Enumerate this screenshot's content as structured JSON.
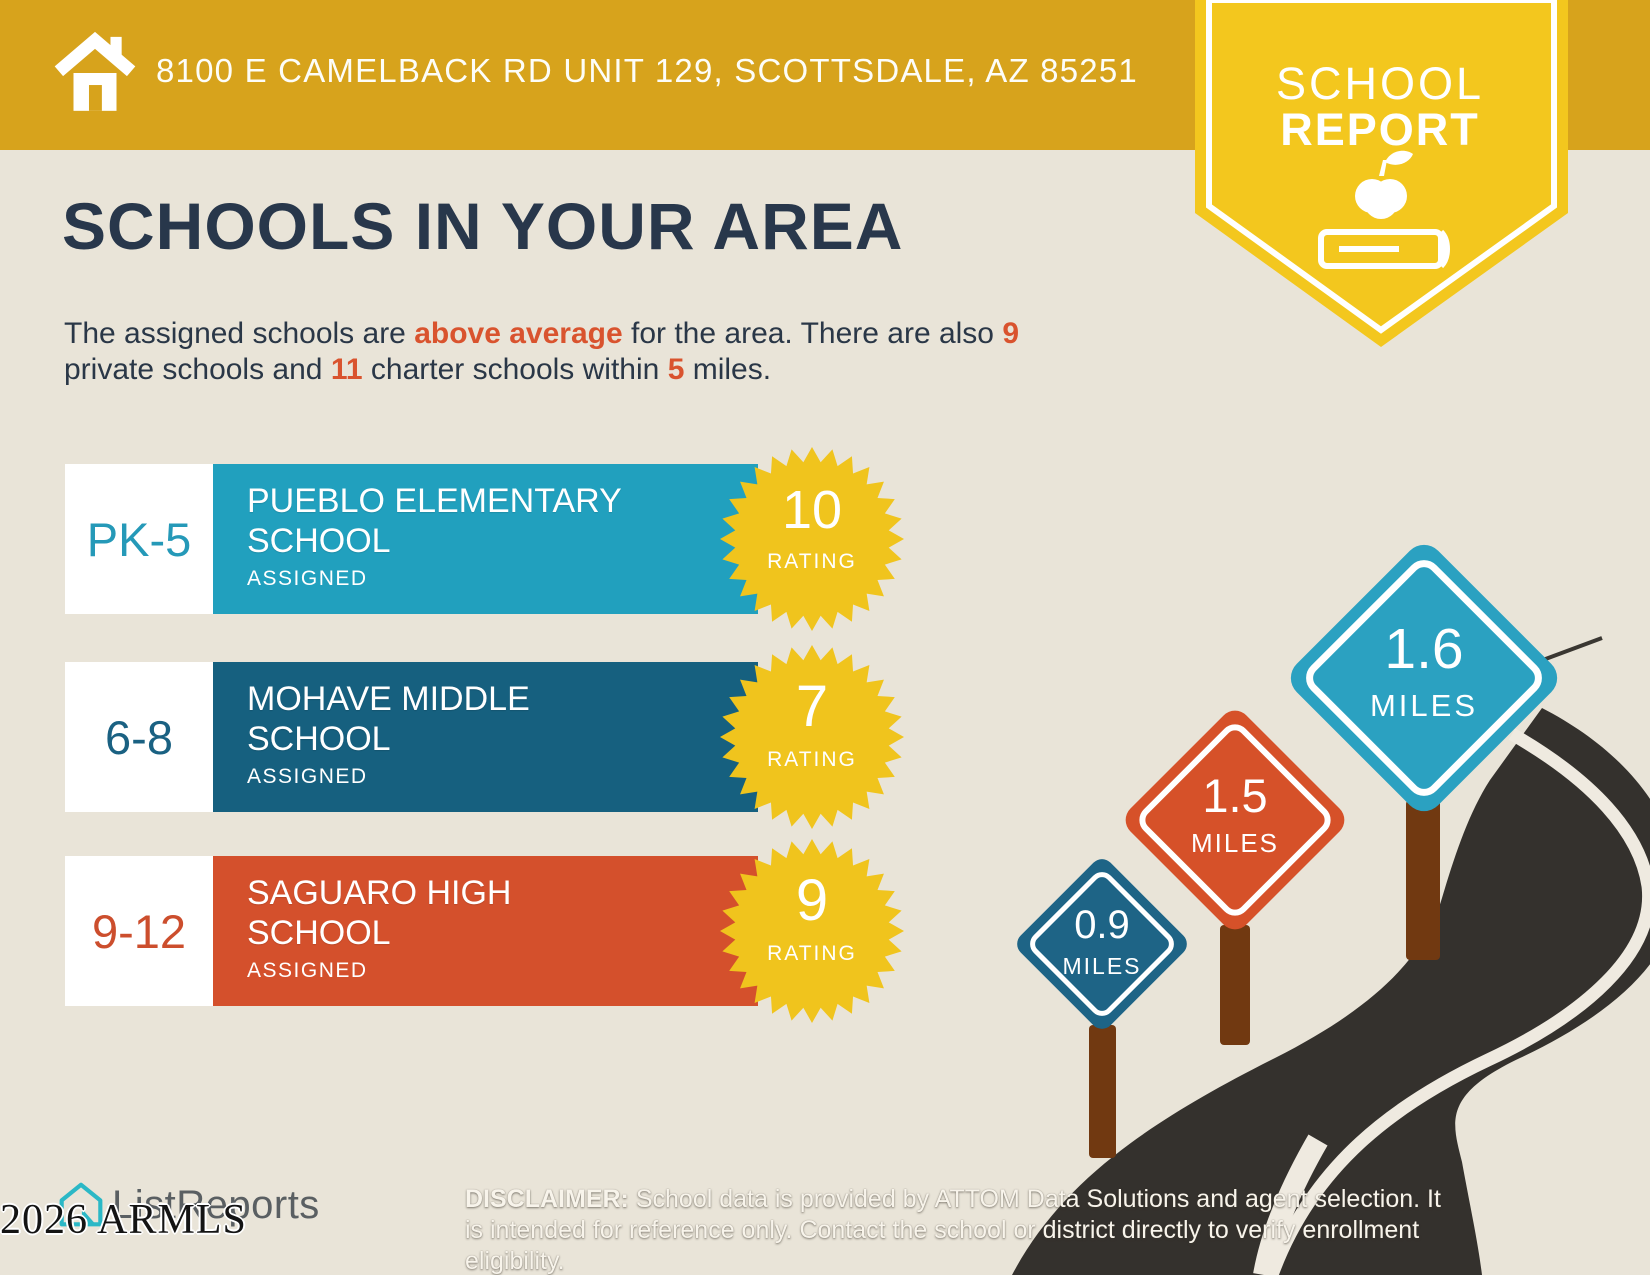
{
  "header": {
    "address": "8100 E CAMELBACK RD UNIT 129, SCOTTSDALE, AZ 85251"
  },
  "badge": {
    "line1": "SCHOOL",
    "line2": "REPORT",
    "icon": "apple-on-book-icon"
  },
  "main": {
    "title": "SCHOOLS IN YOUR AREA",
    "intro": {
      "pre": "The assigned schools are ",
      "highlight_quality": "above average",
      "mid1": " for the area. There are also ",
      "num_private": "9",
      "mid2": " private schools and ",
      "num_charter": "11",
      "mid3": " charter schools within ",
      "num_miles": "5",
      "post": " miles."
    }
  },
  "schools": [
    {
      "grades": "PK-5",
      "name": "PUEBLO ELEMENTARY SCHOOL",
      "status": "ASSIGNED",
      "rating": "10",
      "rating_label": "RATING",
      "bar_color": "#21A0BE",
      "grade_color": "#2599B8"
    },
    {
      "grades": "6-8",
      "name": "MOHAVE MIDDLE SCHOOL",
      "status": "ASSIGNED",
      "rating": "7",
      "rating_label": "RATING",
      "bar_color": "#16607F",
      "grade_color": "#1A6182"
    },
    {
      "grades": "9-12",
      "name": "SAGUARO HIGH SCHOOL",
      "status": "ASSIGNED",
      "rating": "9",
      "rating_label": "RATING",
      "bar_color": "#D4502C",
      "grade_color": "#CC4E2D"
    }
  ],
  "signs": [
    {
      "distance": "0.9",
      "unit": "MILES",
      "color": "#1E6486"
    },
    {
      "distance": "1.5",
      "unit": "MILES",
      "color": "#D65129"
    },
    {
      "distance": "1.6",
      "unit": "MILES",
      "color": "#2BA1C1"
    }
  ],
  "footer": {
    "logo_text": "ListReports",
    "watermark": "2026 ARMLS",
    "disclaimer_label": "DISCLAIMER:",
    "disclaimer_text": " School data is provided by ATTOM Data Solutions and agent selection. It is intended for reference only. Contact the school or district directly to verify enrollment eligibility."
  },
  "colors": {
    "header_gold": "#D7A31C",
    "badge_yellow": "#F3C71E",
    "starburst_yellow": "#F0C41D",
    "background_beige": "#E9E4D8",
    "title_navy": "#28374B",
    "accent_orange": "#D9532E",
    "road_charcoal": "#34312D",
    "post_brown": "#713911",
    "logo_teal": "#2BB8C6"
  }
}
